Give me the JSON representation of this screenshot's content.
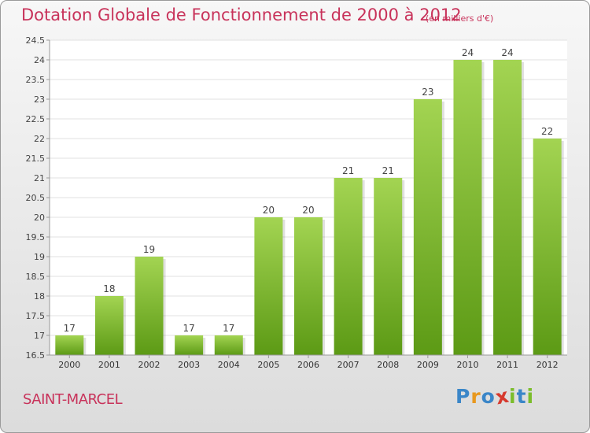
{
  "title": "Dotation Globale de Fonctionnement de 2000 à 2012",
  "subtitle": "(en milliers d'€)",
  "place": "SAINT-MARCEL",
  "logo": {
    "letters": [
      "P",
      "r",
      "o",
      "x",
      "i",
      "t",
      "i"
    ],
    "colors": [
      "#3a86c8",
      "#e8981e",
      "#3a86c8",
      "#d63a2e",
      "#7bbd2b",
      "#3a86c8",
      "#7bbd2b"
    ]
  },
  "colors": {
    "accent": "#c8325a",
    "bar_light": "#a3d452",
    "bar_dark": "#5c9a15"
  },
  "chart_data": {
    "type": "bar",
    "title": "Dotation Globale de Fonctionnement de 2000 à 2012",
    "subtitle": "(en milliers d'€)",
    "categories": [
      "2000",
      "2001",
      "2002",
      "2003",
      "2004",
      "2005",
      "2006",
      "2007",
      "2008",
      "2009",
      "2010",
      "2011",
      "2012"
    ],
    "values": [
      17,
      18,
      19,
      17,
      17,
      20,
      20,
      21,
      21,
      23,
      24,
      24,
      22
    ],
    "value_labels": [
      "17",
      "18",
      "19",
      "17",
      "17",
      "20",
      "20",
      "21",
      "21",
      "23",
      "24",
      "24",
      "22"
    ],
    "ylim": [
      16.5,
      24.5
    ],
    "yticks": [
      "16.5",
      "17",
      "17.5",
      "18",
      "18.5",
      "19",
      "19.5",
      "20",
      "20.5",
      "21",
      "21.5",
      "22",
      "22.5",
      "23",
      "23.5",
      "24",
      "24.5"
    ],
    "grid": true,
    "xlabel": "",
    "ylabel": ""
  }
}
